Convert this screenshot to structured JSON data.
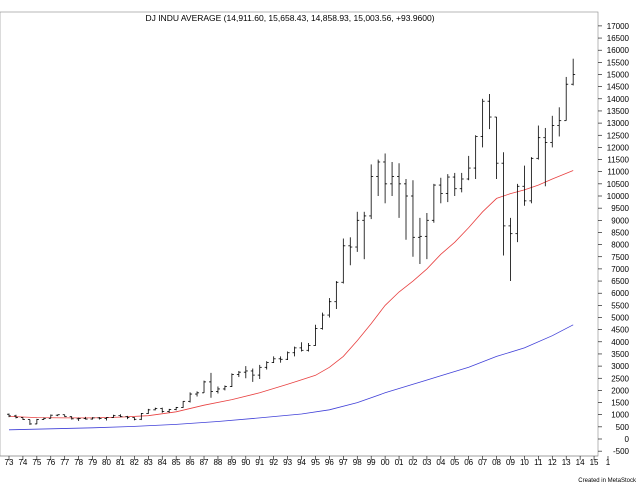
{
  "chart_data": {
    "type": "ohlc",
    "title": "DJ INDU AVERAGE (14,911.60, 15,658.43, 14,858.93, 15,003.56, +93.9600)",
    "credit": "Created in MetaStock",
    "x_tick_labels": [
      "73",
      "74",
      "75",
      "76",
      "77",
      "78",
      "79",
      "80",
      "81",
      "82",
      "83",
      "84",
      "85",
      "86",
      "87",
      "88",
      "89",
      "90",
      "91",
      "92",
      "93",
      "94",
      "95",
      "96",
      "97",
      "98",
      "99",
      "00",
      "01",
      "02",
      "03",
      "04",
      "05",
      "06",
      "07",
      "08",
      "09",
      "10",
      "11",
      "12",
      "13",
      "14",
      "15",
      "1"
    ],
    "y_tick_labels": [
      "17000",
      "16500",
      "16000",
      "15500",
      "15000",
      "14500",
      "14000",
      "13500",
      "13000",
      "12500",
      "12000",
      "11500",
      "11000",
      "10500",
      "10000",
      "9500",
      "9000",
      "8500",
      "8000",
      "7500",
      "7000",
      "6500",
      "6000",
      "5500",
      "5000",
      "4500",
      "4000",
      "3500",
      "3000",
      "2500",
      "2000",
      "1500",
      "1000",
      "500",
      "0",
      "-500"
    ],
    "ylim": [
      -1000,
      17000
    ],
    "grid": false,
    "colors": {
      "bars": "#000000",
      "ma_short": "#e84040",
      "ma_long": "#4040d8"
    },
    "bars": [
      {
        "t": 1973.0,
        "o": 1020,
        "h": 1050,
        "l": 900,
        "c": 950
      },
      {
        "t": 1973.5,
        "o": 950,
        "h": 1000,
        "l": 850,
        "c": 880
      },
      {
        "t": 1974.0,
        "o": 880,
        "h": 890,
        "l": 780,
        "c": 800
      },
      {
        "t": 1974.5,
        "o": 800,
        "h": 800,
        "l": 580,
        "c": 620
      },
      {
        "t": 1975.0,
        "o": 620,
        "h": 830,
        "l": 610,
        "c": 800
      },
      {
        "t": 1975.5,
        "o": 800,
        "h": 880,
        "l": 790,
        "c": 850
      },
      {
        "t": 1976.0,
        "o": 850,
        "h": 1010,
        "l": 850,
        "c": 980
      },
      {
        "t": 1976.5,
        "o": 980,
        "h": 1010,
        "l": 940,
        "c": 1000
      },
      {
        "t": 1977.0,
        "o": 1000,
        "h": 1000,
        "l": 910,
        "c": 920
      },
      {
        "t": 1977.5,
        "o": 920,
        "h": 930,
        "l": 800,
        "c": 830
      },
      {
        "t": 1978.0,
        "o": 830,
        "h": 880,
        "l": 740,
        "c": 840
      },
      {
        "t": 1978.5,
        "o": 840,
        "h": 910,
        "l": 800,
        "c": 820
      },
      {
        "t": 1979.0,
        "o": 820,
        "h": 900,
        "l": 800,
        "c": 870
      },
      {
        "t": 1979.5,
        "o": 870,
        "h": 900,
        "l": 800,
        "c": 840
      },
      {
        "t": 1980.0,
        "o": 840,
        "h": 900,
        "l": 760,
        "c": 880
      },
      {
        "t": 1980.5,
        "o": 880,
        "h": 1000,
        "l": 870,
        "c": 960
      },
      {
        "t": 1981.0,
        "o": 960,
        "h": 1020,
        "l": 900,
        "c": 920
      },
      {
        "t": 1981.5,
        "o": 920,
        "h": 950,
        "l": 820,
        "c": 880
      },
      {
        "t": 1982.0,
        "o": 880,
        "h": 900,
        "l": 770,
        "c": 810
      },
      {
        "t": 1982.5,
        "o": 810,
        "h": 1070,
        "l": 780,
        "c": 1050
      },
      {
        "t": 1983.0,
        "o": 1050,
        "h": 1240,
        "l": 1030,
        "c": 1200
      },
      {
        "t": 1983.5,
        "o": 1200,
        "h": 1290,
        "l": 1180,
        "c": 1250
      },
      {
        "t": 1984.0,
        "o": 1250,
        "h": 1290,
        "l": 1080,
        "c": 1130
      },
      {
        "t": 1984.5,
        "o": 1130,
        "h": 1240,
        "l": 1080,
        "c": 1210
      },
      {
        "t": 1985.0,
        "o": 1210,
        "h": 1320,
        "l": 1180,
        "c": 1300
      },
      {
        "t": 1985.5,
        "o": 1300,
        "h": 1560,
        "l": 1280,
        "c": 1550
      },
      {
        "t": 1986.0,
        "o": 1550,
        "h": 1920,
        "l": 1500,
        "c": 1850
      },
      {
        "t": 1986.5,
        "o": 1850,
        "h": 1960,
        "l": 1750,
        "c": 1900
      },
      {
        "t": 1987.0,
        "o": 1900,
        "h": 2400,
        "l": 1900,
        "c": 2350
      },
      {
        "t": 1987.5,
        "o": 2350,
        "h": 2720,
        "l": 1700,
        "c": 1950
      },
      {
        "t": 1988.0,
        "o": 1950,
        "h": 2160,
        "l": 1870,
        "c": 2060
      },
      {
        "t": 1988.5,
        "o": 2060,
        "h": 2200,
        "l": 2000,
        "c": 2160
      },
      {
        "t": 1989.0,
        "o": 2160,
        "h": 2700,
        "l": 2140,
        "c": 2650
      },
      {
        "t": 1989.5,
        "o": 2650,
        "h": 2800,
        "l": 2550,
        "c": 2750
      },
      {
        "t": 1990.0,
        "o": 2750,
        "h": 3000,
        "l": 2500,
        "c": 2800
      },
      {
        "t": 1990.5,
        "o": 2800,
        "h": 2900,
        "l": 2350,
        "c": 2630
      },
      {
        "t": 1991.0,
        "o": 2630,
        "h": 3050,
        "l": 2470,
        "c": 2950
      },
      {
        "t": 1991.5,
        "o": 2950,
        "h": 3200,
        "l": 2860,
        "c": 3150
      },
      {
        "t": 1992.0,
        "o": 3150,
        "h": 3400,
        "l": 3130,
        "c": 3300
      },
      {
        "t": 1992.5,
        "o": 3300,
        "h": 3400,
        "l": 3140,
        "c": 3280
      },
      {
        "t": 1993.0,
        "o": 3280,
        "h": 3600,
        "l": 3250,
        "c": 3550
      },
      {
        "t": 1993.5,
        "o": 3550,
        "h": 3800,
        "l": 3400,
        "c": 3750
      },
      {
        "t": 1994.0,
        "o": 3750,
        "h": 3980,
        "l": 3600,
        "c": 3650
      },
      {
        "t": 1994.5,
        "o": 3650,
        "h": 3950,
        "l": 3600,
        "c": 3850
      },
      {
        "t": 1995.0,
        "o": 3850,
        "h": 4700,
        "l": 3830,
        "c": 4550
      },
      {
        "t": 1995.5,
        "o": 4550,
        "h": 5200,
        "l": 4500,
        "c": 5100
      },
      {
        "t": 1996.0,
        "o": 5100,
        "h": 5800,
        "l": 5000,
        "c": 5650
      },
      {
        "t": 1996.5,
        "o": 5650,
        "h": 6500,
        "l": 5350,
        "c": 6450
      },
      {
        "t": 1997.0,
        "o": 6450,
        "h": 8250,
        "l": 6400,
        "c": 7950
      },
      {
        "t": 1997.5,
        "o": 7950,
        "h": 8300,
        "l": 7150,
        "c": 7900
      },
      {
        "t": 1998.0,
        "o": 7900,
        "h": 9350,
        "l": 7700,
        "c": 9000
      },
      {
        "t": 1998.5,
        "o": 9000,
        "h": 9350,
        "l": 7400,
        "c": 9180
      },
      {
        "t": 1999.0,
        "o": 9180,
        "h": 11300,
        "l": 9050,
        "c": 10800
      },
      {
        "t": 1999.5,
        "o": 10800,
        "h": 11500,
        "l": 10000,
        "c": 11400
      },
      {
        "t": 2000.0,
        "o": 11400,
        "h": 11750,
        "l": 9700,
        "c": 10500
      },
      {
        "t": 2000.5,
        "o": 10500,
        "h": 11400,
        "l": 10000,
        "c": 10800
      },
      {
        "t": 2001.0,
        "o": 10800,
        "h": 11350,
        "l": 9100,
        "c": 10500
      },
      {
        "t": 2001.5,
        "o": 10500,
        "h": 10700,
        "l": 8200,
        "c": 10000
      },
      {
        "t": 2002.0,
        "o": 10000,
        "h": 10650,
        "l": 7500,
        "c": 8300
      },
      {
        "t": 2002.5,
        "o": 8300,
        "h": 9100,
        "l": 7200,
        "c": 8340
      },
      {
        "t": 2003.0,
        "o": 8340,
        "h": 9300,
        "l": 7400,
        "c": 9000
      },
      {
        "t": 2003.5,
        "o": 9000,
        "h": 10500,
        "l": 8900,
        "c": 10450
      },
      {
        "t": 2004.0,
        "o": 10450,
        "h": 10750,
        "l": 9700,
        "c": 10100
      },
      {
        "t": 2004.5,
        "o": 10100,
        "h": 10900,
        "l": 9750,
        "c": 10780
      },
      {
        "t": 2005.0,
        "o": 10780,
        "h": 10950,
        "l": 10000,
        "c": 10300
      },
      {
        "t": 2005.5,
        "o": 10300,
        "h": 10950,
        "l": 10150,
        "c": 10700
      },
      {
        "t": 2006.0,
        "o": 10700,
        "h": 11650,
        "l": 10650,
        "c": 11150
      },
      {
        "t": 2006.5,
        "o": 11150,
        "h": 12500,
        "l": 10700,
        "c": 12450
      },
      {
        "t": 2007.0,
        "o": 12450,
        "h": 14000,
        "l": 12000,
        "c": 13900
      },
      {
        "t": 2007.5,
        "o": 13900,
        "h": 14200,
        "l": 12750,
        "c": 13250
      },
      {
        "t": 2008.0,
        "o": 13250,
        "h": 13250,
        "l": 10700,
        "c": 11350
      },
      {
        "t": 2008.5,
        "o": 11350,
        "h": 11800,
        "l": 7550,
        "c": 8770
      },
      {
        "t": 2009.0,
        "o": 8770,
        "h": 9100,
        "l": 6500,
        "c": 8450
      },
      {
        "t": 2009.5,
        "o": 8450,
        "h": 10500,
        "l": 8100,
        "c": 10400
      },
      {
        "t": 2010.0,
        "o": 10400,
        "h": 11250,
        "l": 9600,
        "c": 9800
      },
      {
        "t": 2010.5,
        "o": 9800,
        "h": 11600,
        "l": 9700,
        "c": 11550
      },
      {
        "t": 2011.0,
        "o": 11550,
        "h": 12900,
        "l": 11500,
        "c": 12400
      },
      {
        "t": 2011.5,
        "o": 12400,
        "h": 12800,
        "l": 10400,
        "c": 12200
      },
      {
        "t": 2012.0,
        "o": 12200,
        "h": 13300,
        "l": 12000,
        "c": 12900
      },
      {
        "t": 2012.5,
        "o": 12900,
        "h": 13650,
        "l": 12450,
        "c": 13100
      },
      {
        "t": 2013.0,
        "o": 13100,
        "h": 14900,
        "l": 13100,
        "c": 14600
      },
      {
        "t": 2013.5,
        "o": 14600,
        "h": 15650,
        "l": 14550,
        "c": 15000
      }
    ],
    "ma_short": [
      {
        "t": 1973.0,
        "v": 930
      },
      {
        "t": 1975.0,
        "v": 880
      },
      {
        "t": 1977.0,
        "v": 870
      },
      {
        "t": 1979.0,
        "v": 870
      },
      {
        "t": 1981.0,
        "v": 900
      },
      {
        "t": 1983.0,
        "v": 960
      },
      {
        "t": 1985.0,
        "v": 1120
      },
      {
        "t": 1987.0,
        "v": 1390
      },
      {
        "t": 1989.0,
        "v": 1620
      },
      {
        "t": 1991.0,
        "v": 1900
      },
      {
        "t": 1993.0,
        "v": 2250
      },
      {
        "t": 1995.0,
        "v": 2620
      },
      {
        "t": 1996.0,
        "v": 2950
      },
      {
        "t": 1997.0,
        "v": 3400
      },
      {
        "t": 1998.0,
        "v": 4050
      },
      {
        "t": 1999.0,
        "v": 4750
      },
      {
        "t": 2000.0,
        "v": 5500
      },
      {
        "t": 2001.0,
        "v": 6050
      },
      {
        "t": 2002.0,
        "v": 6500
      },
      {
        "t": 2003.0,
        "v": 7000
      },
      {
        "t": 2004.0,
        "v": 7600
      },
      {
        "t": 2005.0,
        "v": 8100
      },
      {
        "t": 2006.0,
        "v": 8700
      },
      {
        "t": 2007.0,
        "v": 9350
      },
      {
        "t": 2008.0,
        "v": 9900
      },
      {
        "t": 2009.0,
        "v": 10100
      },
      {
        "t": 2010.0,
        "v": 10250
      },
      {
        "t": 2011.0,
        "v": 10450
      },
      {
        "t": 2012.0,
        "v": 10700
      },
      {
        "t": 2013.5,
        "v": 11050
      }
    ],
    "ma_long": [
      {
        "t": 1973.0,
        "v": 380
      },
      {
        "t": 1976.0,
        "v": 420
      },
      {
        "t": 1979.0,
        "v": 460
      },
      {
        "t": 1982.0,
        "v": 520
      },
      {
        "t": 1985.0,
        "v": 600
      },
      {
        "t": 1988.0,
        "v": 720
      },
      {
        "t": 1991.0,
        "v": 870
      },
      {
        "t": 1994.0,
        "v": 1030
      },
      {
        "t": 1996.0,
        "v": 1200
      },
      {
        "t": 1998.0,
        "v": 1500
      },
      {
        "t": 2000.0,
        "v": 1900
      },
      {
        "t": 2002.0,
        "v": 2250
      },
      {
        "t": 2004.0,
        "v": 2600
      },
      {
        "t": 2006.0,
        "v": 2950
      },
      {
        "t": 2008.0,
        "v": 3400
      },
      {
        "t": 2010.0,
        "v": 3750
      },
      {
        "t": 2012.0,
        "v": 4250
      },
      {
        "t": 2013.5,
        "v": 4700
      }
    ]
  }
}
